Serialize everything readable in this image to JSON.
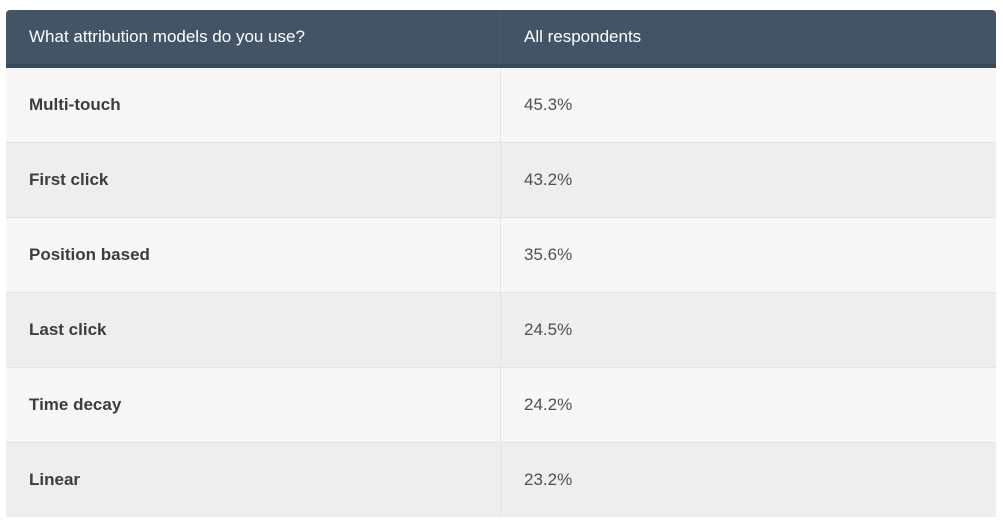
{
  "chart_data": {
    "type": "table",
    "columns": [
      "What attribution models do you use?",
      "All respondents"
    ],
    "rows": [
      [
        "Multi-touch",
        "45.3%"
      ],
      [
        "First click",
        "43.2%"
      ],
      [
        "Position based",
        "35.6%"
      ],
      [
        "Last click",
        "24.5%"
      ],
      [
        "Time decay",
        "24.2%"
      ],
      [
        "Linear",
        "23.2%"
      ]
    ]
  },
  "colors": {
    "header_bg": "#435466",
    "row_light": "#f7f7f7",
    "row_dark": "#eeeeee"
  }
}
